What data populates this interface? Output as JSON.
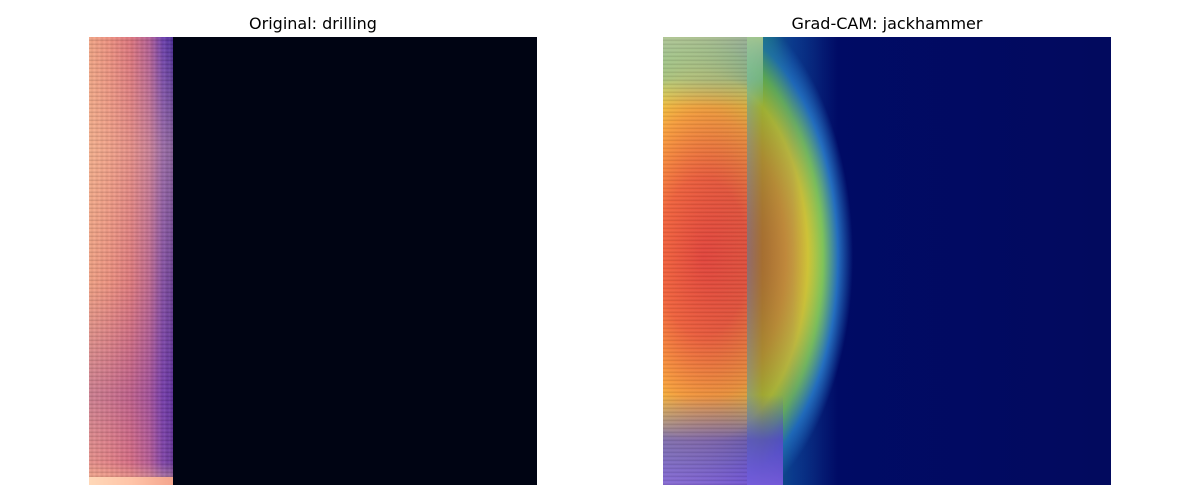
{
  "panels": {
    "left": {
      "title": "Original: drilling"
    },
    "right": {
      "title": "Grad-CAM: jackhammer"
    }
  },
  "colors": {
    "background": "#ffffff",
    "spectrogram_empty": "#000413",
    "cam_cold": "#020a5e",
    "cam_hot": "#e83a2a"
  }
}
